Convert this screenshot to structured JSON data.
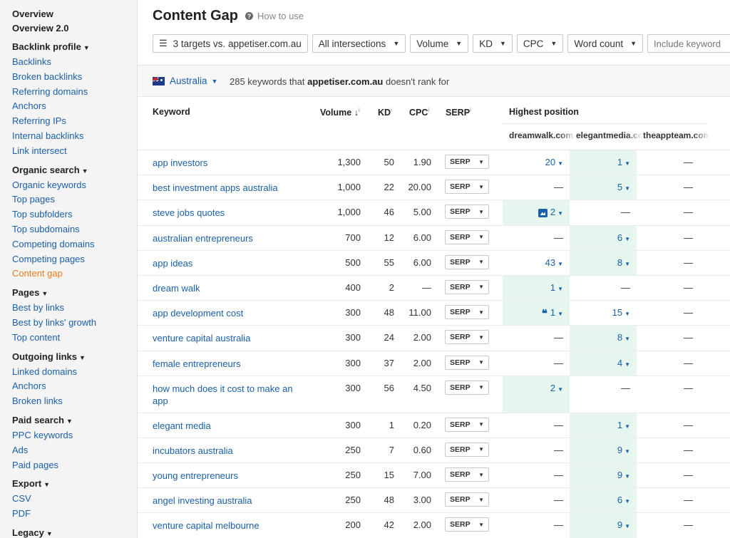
{
  "sidebar": {
    "top": [
      "Overview",
      "Overview 2.0"
    ],
    "groups": [
      {
        "title": "Backlink profile",
        "items": [
          "Backlinks",
          "Broken backlinks",
          "Referring domains",
          "Anchors",
          "Referring IPs",
          "Internal backlinks",
          "Link intersect"
        ]
      },
      {
        "title": "Organic search",
        "items": [
          "Organic keywords",
          "Top pages",
          "Top subfolders",
          "Top subdomains",
          "Competing domains",
          "Competing pages",
          "Content gap"
        ]
      },
      {
        "title": "Pages",
        "items": [
          "Best by links",
          "Best by links' growth",
          "Top content"
        ]
      },
      {
        "title": "Outgoing links",
        "items": [
          "Linked domains",
          "Anchors",
          "Broken links"
        ]
      },
      {
        "title": "Paid search",
        "items": [
          "PPC keywords",
          "Ads",
          "Paid pages"
        ]
      },
      {
        "title": "Export",
        "items": [
          "CSV",
          "PDF"
        ]
      },
      {
        "title": "Legacy",
        "items": []
      }
    ],
    "active": "Content gap"
  },
  "header": {
    "title": "Content Gap",
    "help_label": "How to use",
    "help_icon": "question-circle-icon"
  },
  "filters": {
    "targets": "3 targets vs. appetiser.com.au",
    "intersections": "All intersections",
    "volume": "Volume",
    "kd": "KD",
    "cpc": "CPC",
    "word_count": "Word count",
    "include_placeholder": "Include keyword"
  },
  "info": {
    "country": "Australia",
    "count_text": "285 keywords that",
    "domain": "appetiser.com.au",
    "suffix": "doesn't rank for"
  },
  "table": {
    "headers": {
      "keyword": "Keyword",
      "volume": "Volume",
      "kd": "KD",
      "cpc": "CPC",
      "serp": "SERP",
      "highest_position": "Highest position",
      "info_mark": "i",
      "sort_arrow": "↓"
    },
    "competitors": [
      "dreamwalk.com.au",
      "elegantmedia.com.au",
      "theappteam.com.au"
    ],
    "serp_label": "SERP",
    "dash": "—",
    "rows": [
      {
        "keyword": "app investors",
        "volume": "1,300",
        "kd": "50",
        "cpc": "1.90",
        "p": [
          "20",
          "1",
          "—"
        ],
        "hl": 1,
        "feat": ""
      },
      {
        "keyword": "best investment apps australia",
        "volume": "1,000",
        "kd": "22",
        "cpc": "20.00",
        "p": [
          "—",
          "5",
          "—"
        ],
        "hl": 1,
        "feat": ""
      },
      {
        "keyword": "steve jobs quotes",
        "volume": "1,000",
        "kd": "46",
        "cpc": "5.00",
        "p": [
          "2",
          "—",
          "—"
        ],
        "hl": 0,
        "feat": "image"
      },
      {
        "keyword": "australian entrepreneurs",
        "volume": "700",
        "kd": "12",
        "cpc": "6.00",
        "p": [
          "—",
          "6",
          "—"
        ],
        "hl": 1,
        "feat": ""
      },
      {
        "keyword": "app ideas",
        "volume": "500",
        "kd": "55",
        "cpc": "6.00",
        "p": [
          "43",
          "8",
          "—"
        ],
        "hl": 1,
        "feat": ""
      },
      {
        "keyword": "dream walk",
        "volume": "400",
        "kd": "2",
        "cpc": "—",
        "p": [
          "1",
          "—",
          "—"
        ],
        "hl": 0,
        "feat": ""
      },
      {
        "keyword": "app development cost",
        "volume": "300",
        "kd": "48",
        "cpc": "11.00",
        "p": [
          "1",
          "15",
          "—"
        ],
        "hl": 0,
        "feat": "quote"
      },
      {
        "keyword": "venture capital australia",
        "volume": "300",
        "kd": "24",
        "cpc": "2.00",
        "p": [
          "—",
          "8",
          "—"
        ],
        "hl": 1,
        "feat": ""
      },
      {
        "keyword": "female entrepreneurs",
        "volume": "300",
        "kd": "37",
        "cpc": "2.00",
        "p": [
          "—",
          "4",
          "—"
        ],
        "hl": 1,
        "feat": ""
      },
      {
        "keyword": "how much does it cost to make an app",
        "volume": "300",
        "kd": "56",
        "cpc": "4.50",
        "p": [
          "2",
          "—",
          "—"
        ],
        "hl": 0,
        "feat": "",
        "tall": true
      },
      {
        "keyword": "elegant media",
        "volume": "300",
        "kd": "1",
        "cpc": "0.20",
        "p": [
          "—",
          "1",
          "—"
        ],
        "hl": 1,
        "feat": ""
      },
      {
        "keyword": "incubators australia",
        "volume": "250",
        "kd": "7",
        "cpc": "0.60",
        "p": [
          "—",
          "9",
          "—"
        ],
        "hl": 1,
        "feat": ""
      },
      {
        "keyword": "young entrepreneurs",
        "volume": "250",
        "kd": "15",
        "cpc": "7.00",
        "p": [
          "—",
          "9",
          "—"
        ],
        "hl": 1,
        "feat": ""
      },
      {
        "keyword": "angel investing australia",
        "volume": "250",
        "kd": "48",
        "cpc": "3.00",
        "p": [
          "—",
          "6",
          "—"
        ],
        "hl": 1,
        "feat": ""
      },
      {
        "keyword": "venture capital melbourne",
        "volume": "200",
        "kd": "42",
        "cpc": "2.00",
        "p": [
          "—",
          "9",
          "—"
        ],
        "hl": 1,
        "feat": ""
      }
    ]
  },
  "colors": {
    "link": "#1a5fa8",
    "active": "#f07b1a",
    "highlight": "#e6f6ef"
  }
}
